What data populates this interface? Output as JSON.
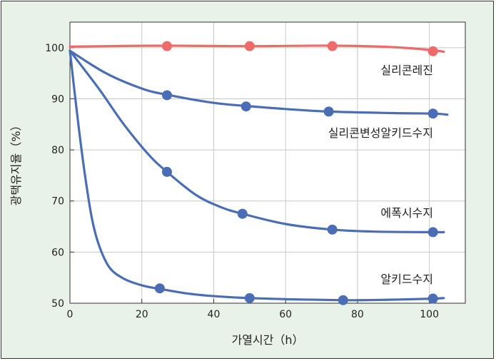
{
  "chart_data": {
    "type": "line",
    "title": "",
    "xlabel": "가열시간（h）",
    "ylabel": "광택유지율（%）",
    "xlim": [
      0,
      110
    ],
    "ylim": [
      50,
      105
    ],
    "xticks": [
      0,
      20,
      40,
      60,
      80,
      100
    ],
    "yticks": [
      50,
      60,
      70,
      80,
      90,
      100
    ],
    "grid": true,
    "colors": {
      "red": "#ee6b6b",
      "blue": "#4a6db5"
    },
    "series": [
      {
        "name": "실리콘레진",
        "color": "#ee6b6b",
        "points": [
          [
            27,
            100.3
          ],
          [
            50,
            100.3
          ],
          [
            73,
            100.3
          ],
          [
            101,
            99.3
          ]
        ],
        "curve": [
          [
            0,
            100.2
          ],
          [
            10,
            100.3
          ],
          [
            27,
            100.4
          ],
          [
            50,
            100.3
          ],
          [
            73,
            100.4
          ],
          [
            90,
            100.1
          ],
          [
            101,
            99.5
          ],
          [
            104,
            99.2
          ]
        ]
      },
      {
        "name": "실리콘변성알키드수지",
        "color": "#4a6db5",
        "points": [
          [
            27,
            90.7
          ],
          [
            49,
            88.5
          ],
          [
            72,
            87.5
          ],
          [
            101,
            87.1
          ]
        ],
        "curve": [
          [
            0,
            99.4
          ],
          [
            10,
            95
          ],
          [
            20,
            92
          ],
          [
            27,
            90.8
          ],
          [
            40,
            89.2
          ],
          [
            49,
            88.6
          ],
          [
            60,
            88
          ],
          [
            72,
            87.5
          ],
          [
            90,
            87.2
          ],
          [
            101,
            87.1
          ],
          [
            105,
            86.9
          ]
        ]
      },
      {
        "name": "에폭시수지",
        "color": "#4a6db5",
        "points": [
          [
            27,
            75.7
          ],
          [
            48,
            67.5
          ],
          [
            73,
            64.4
          ],
          [
            101,
            63.9
          ]
        ],
        "curve": [
          [
            0,
            99.4
          ],
          [
            8,
            92
          ],
          [
            15,
            85
          ],
          [
            22,
            79
          ],
          [
            27,
            75.7
          ],
          [
            35,
            71.2
          ],
          [
            42,
            68.8
          ],
          [
            48,
            67.5
          ],
          [
            60,
            65.5
          ],
          [
            73,
            64.4
          ],
          [
            85,
            64
          ],
          [
            101,
            63.9
          ],
          [
            104,
            63.9
          ]
        ]
      },
      {
        "name": "알키드수지",
        "color": "#4a6db5",
        "points": [
          [
            25,
            52.9
          ],
          [
            50,
            51.0
          ],
          [
            76,
            50.6
          ],
          [
            101,
            50.9
          ]
        ],
        "curve": [
          [
            0,
            99.4
          ],
          [
            2,
            87
          ],
          [
            4,
            76
          ],
          [
            6,
            67
          ],
          [
            8,
            61.5
          ],
          [
            11,
            57
          ],
          [
            15,
            54.8
          ],
          [
            20,
            53.5
          ],
          [
            25,
            52.8
          ],
          [
            35,
            51.7
          ],
          [
            50,
            51.0
          ],
          [
            76,
            50.6
          ],
          [
            90,
            50.7
          ],
          [
            101,
            50.9
          ],
          [
            104,
            51.0
          ]
        ]
      }
    ],
    "series_labels": [
      "실리콘레진",
      "실리콘변성알키드수지",
      "에폭시수지",
      "알키드수지"
    ]
  }
}
